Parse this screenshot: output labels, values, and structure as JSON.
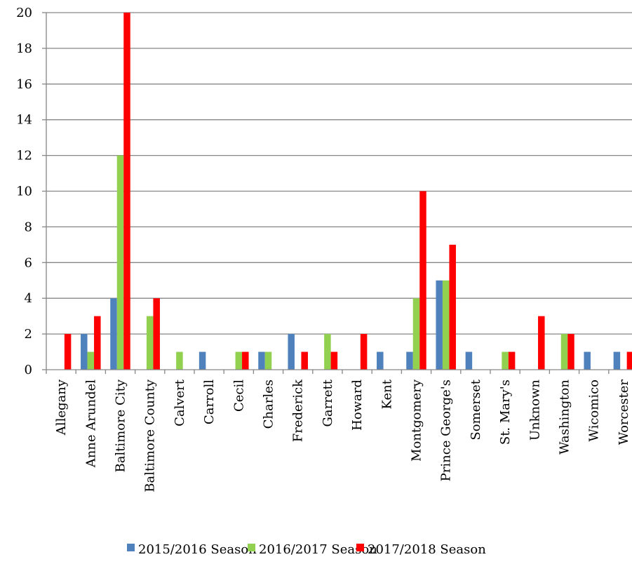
{
  "chart_data": {
    "type": "bar",
    "categories": [
      "Allegany",
      "Anne Arundel",
      "Baltimore City",
      "Baltimore County",
      "Calvert",
      "Carroll",
      "Cecil",
      "Charles",
      "Frederick",
      "Garrett",
      "Howard",
      "Kent",
      "Montgomery",
      "Prince George's",
      "Somerset",
      "St. Mary's",
      "Unknown",
      "Washington",
      "Wicomico",
      "Worcester"
    ],
    "series": [
      {
        "name": "2015/2016 Season",
        "color": "#4f81bd",
        "values": [
          0,
          2,
          4,
          0,
          0,
          1,
          0,
          1,
          2,
          0,
          0,
          1,
          1,
          5,
          1,
          0,
          0,
          0,
          1,
          1
        ]
      },
      {
        "name": "2016/2017 Season",
        "color": "#92d050",
        "values": [
          0,
          1,
          12,
          3,
          1,
          0,
          1,
          1,
          0,
          2,
          0,
          0,
          4,
          5,
          0,
          1,
          0,
          2,
          0,
          0
        ]
      },
      {
        "name": "2017/2018 Season",
        "color": "#ff0000",
        "values": [
          2,
          3,
          20,
          4,
          0,
          0,
          1,
          0,
          1,
          1,
          2,
          0,
          10,
          7,
          0,
          1,
          3,
          2,
          0,
          1
        ]
      }
    ],
    "yticks": [
      "0",
      "2",
      "4",
      "6",
      "8",
      "10",
      "12",
      "14",
      "16",
      "18",
      "20"
    ],
    "ylim": [
      0,
      20
    ],
    "title": "",
    "xlabel": "",
    "ylabel": "",
    "grid": true,
    "legend": "bottom"
  }
}
